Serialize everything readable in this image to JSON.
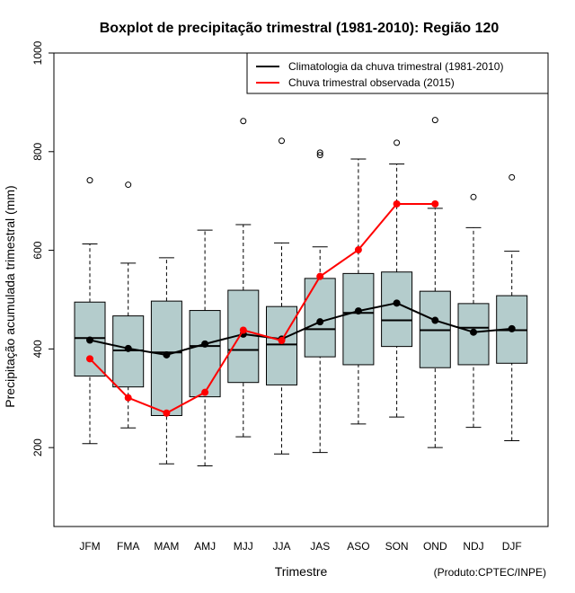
{
  "chart_data": {
    "type": "boxplot",
    "title": "Boxplot de precipitação trimestral (1981-2010): Região 120",
    "xlabel": "Trimestre",
    "ylabel": "Precipitação acumulada trimestral (mm)",
    "ylim": [
      40,
      1000
    ],
    "yticks": [
      200,
      400,
      600,
      800,
      1000
    ],
    "credit": "(Produto:CPTEC/INPE)",
    "box_color": "#b4cccc",
    "categories": [
      "JFM",
      "FMA",
      "MAM",
      "AMJ",
      "MJJ",
      "JJA",
      "JAS",
      "ASO",
      "SON",
      "OND",
      "NDJ",
      "DJF"
    ],
    "boxes": [
      {
        "whisker_low": 208,
        "q1": 345,
        "median": 422,
        "q3": 495,
        "whisker_high": 613,
        "outliers": [
          742
        ]
      },
      {
        "whisker_low": 240,
        "q1": 323,
        "median": 397,
        "q3": 467,
        "whisker_high": 574,
        "outliers": [
          733
        ]
      },
      {
        "whisker_low": 167,
        "q1": 265,
        "median": 393,
        "q3": 497,
        "whisker_high": 585,
        "outliers": []
      },
      {
        "whisker_low": 163,
        "q1": 303,
        "median": 406,
        "q3": 478,
        "whisker_high": 641,
        "outliers": []
      },
      {
        "whisker_low": 222,
        "q1": 332,
        "median": 398,
        "q3": 519,
        "whisker_high": 652,
        "outliers": [
          862
        ]
      },
      {
        "whisker_low": 187,
        "q1": 327,
        "median": 409,
        "q3": 486,
        "whisker_high": 615,
        "outliers": [
          822
        ]
      },
      {
        "whisker_low": 190,
        "q1": 384,
        "median": 440,
        "q3": 543,
        "whisker_high": 607,
        "outliers": [
          793,
          798
        ]
      },
      {
        "whisker_low": 248,
        "q1": 368,
        "median": 473,
        "q3": 553,
        "whisker_high": 785,
        "outliers": []
      },
      {
        "whisker_low": 262,
        "q1": 405,
        "median": 458,
        "q3": 556,
        "whisker_high": 775,
        "outliers": [
          818
        ]
      },
      {
        "whisker_low": 200,
        "q1": 362,
        "median": 438,
        "q3": 517,
        "whisker_high": 685,
        "outliers": [
          864
        ]
      },
      {
        "whisker_low": 241,
        "q1": 368,
        "median": 443,
        "q3": 492,
        "whisker_high": 646,
        "outliers": [
          708
        ]
      },
      {
        "whisker_low": 214,
        "q1": 371,
        "median": 438,
        "q3": 508,
        "whisker_high": 598,
        "outliers": [
          748
        ]
      }
    ],
    "series": [
      {
        "name": "Climatologia da chuva trimestral (1981-2010)",
        "color": "#000000",
        "values": [
          418,
          401,
          388,
          410,
          430,
          420,
          455,
          477,
          493,
          458,
          434,
          441
        ]
      },
      {
        "name": "Chuva trimestral observada (2015)",
        "color": "#ff0000",
        "values": [
          380,
          301,
          270,
          312,
          438,
          417,
          547,
          601,
          694,
          694,
          null,
          null
        ]
      }
    ],
    "legend_position": "top-right"
  }
}
